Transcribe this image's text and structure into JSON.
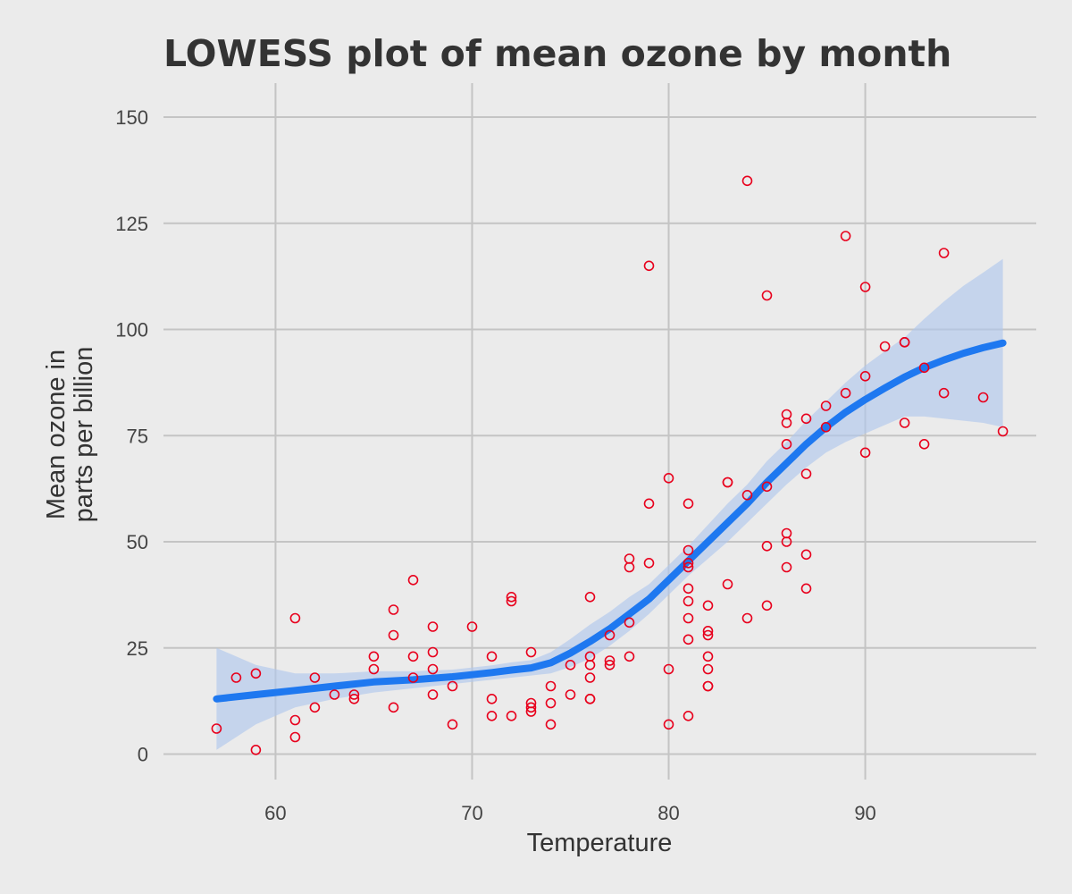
{
  "chart_data": {
    "type": "scatter",
    "title": "LOWESS plot of mean ozone by month",
    "xlabel": "Temperature",
    "ylabel": [
      "Mean ozone in",
      "parts per billion"
    ],
    "xlim": [
      54.3,
      98.7
    ],
    "ylim": [
      -6,
      158
    ],
    "xticks": [
      60,
      70,
      80,
      90
    ],
    "yticks": [
      0,
      25,
      50,
      75,
      100,
      125,
      150
    ],
    "grid": true,
    "colors": {
      "background": "#ebebeb",
      "grid": "#c4c4c4",
      "points": "#e8001c",
      "line": "#1e78f0",
      "band": "#aec6ee",
      "title": "#333333"
    },
    "points": [
      [
        57,
        6
      ],
      [
        58,
        18
      ],
      [
        59,
        19
      ],
      [
        59,
        1
      ],
      [
        61,
        32
      ],
      [
        61,
        8
      ],
      [
        61,
        4
      ],
      [
        62,
        18
      ],
      [
        62,
        11
      ],
      [
        63,
        14
      ],
      [
        64,
        14
      ],
      [
        64,
        13
      ],
      [
        65,
        23
      ],
      [
        65,
        20
      ],
      [
        66,
        34
      ],
      [
        66,
        28
      ],
      [
        66,
        11
      ],
      [
        67,
        41
      ],
      [
        67,
        23
      ],
      [
        67,
        18
      ],
      [
        68,
        30
      ],
      [
        68,
        24
      ],
      [
        68,
        20
      ],
      [
        68,
        14
      ],
      [
        69,
        16
      ],
      [
        69,
        7
      ],
      [
        70,
        30
      ],
      [
        71,
        23
      ],
      [
        71,
        13
      ],
      [
        71,
        9
      ],
      [
        72,
        37
      ],
      [
        72,
        36
      ],
      [
        72,
        9
      ],
      [
        73,
        24
      ],
      [
        73,
        12
      ],
      [
        73,
        11
      ],
      [
        73,
        10
      ],
      [
        74,
        16
      ],
      [
        74,
        12
      ],
      [
        74,
        7
      ],
      [
        75,
        21
      ],
      [
        75,
        14
      ],
      [
        76,
        37
      ],
      [
        76,
        23
      ],
      [
        76,
        21
      ],
      [
        76,
        18
      ],
      [
        76,
        13
      ],
      [
        76,
        13
      ],
      [
        77,
        28
      ],
      [
        77,
        22
      ],
      [
        77,
        21
      ],
      [
        78,
        46
      ],
      [
        78,
        44
      ],
      [
        78,
        31
      ],
      [
        78,
        23
      ],
      [
        79,
        115
      ],
      [
        79,
        59
      ],
      [
        79,
        45
      ],
      [
        80,
        65
      ],
      [
        80,
        20
      ],
      [
        80,
        7
      ],
      [
        81,
        59
      ],
      [
        81,
        48
      ],
      [
        81,
        45
      ],
      [
        81,
        44
      ],
      [
        81,
        39
      ],
      [
        81,
        36
      ],
      [
        81,
        32
      ],
      [
        81,
        27
      ],
      [
        81,
        9
      ],
      [
        82,
        35
      ],
      [
        82,
        29
      ],
      [
        82,
        28
      ],
      [
        82,
        23
      ],
      [
        82,
        20
      ],
      [
        82,
        16
      ],
      [
        82,
        16
      ],
      [
        83,
        64
      ],
      [
        83,
        64
      ],
      [
        83,
        40
      ],
      [
        84,
        135
      ],
      [
        84,
        61
      ],
      [
        84,
        32
      ],
      [
        85,
        108
      ],
      [
        85,
        63
      ],
      [
        85,
        49
      ],
      [
        85,
        35
      ],
      [
        86,
        80
      ],
      [
        86,
        78
      ],
      [
        86,
        73
      ],
      [
        86,
        52
      ],
      [
        86,
        50
      ],
      [
        86,
        44
      ],
      [
        87,
        79
      ],
      [
        87,
        66
      ],
      [
        87,
        47
      ],
      [
        87,
        39
      ],
      [
        88,
        82
      ],
      [
        88,
        77
      ],
      [
        89,
        122
      ],
      [
        89,
        85
      ],
      [
        90,
        110
      ],
      [
        90,
        89
      ],
      [
        90,
        71
      ],
      [
        91,
        96
      ],
      [
        92,
        97
      ],
      [
        92,
        97
      ],
      [
        92,
        78
      ],
      [
        93,
        91
      ],
      [
        93,
        73
      ],
      [
        94,
        118
      ],
      [
        94,
        85
      ],
      [
        96,
        84
      ],
      [
        97,
        76
      ]
    ],
    "lowess": {
      "x": [
        57,
        59,
        61,
        63,
        65,
        67,
        69,
        71,
        72,
        73,
        74,
        75,
        76,
        77,
        78,
        79,
        80,
        81,
        82,
        83,
        84,
        85,
        86,
        87,
        88,
        89,
        90,
        91,
        92,
        93,
        94,
        95,
        96,
        97
      ],
      "y": [
        13,
        14,
        15,
        16,
        17,
        17.5,
        18.2,
        19.2,
        19.8,
        20.3,
        21.5,
        23.8,
        26.5,
        29.5,
        33,
        36.5,
        41,
        45.5,
        50,
        54.5,
        59,
        64,
        68.5,
        73,
        77,
        80.5,
        83.5,
        86.2,
        88.8,
        91,
        92.8,
        94.4,
        95.7,
        96.8
      ],
      "lower": [
        1,
        7,
        11,
        13,
        14.5,
        15.5,
        16.5,
        17.5,
        18,
        18.5,
        19,
        20.5,
        22.5,
        25.5,
        29,
        33,
        37.5,
        42,
        46,
        50,
        54.5,
        59,
        63.5,
        67.5,
        71,
        73.5,
        75.5,
        77.5,
        79.5,
        79.5,
        79,
        78.5,
        78,
        77
      ]
    }
  }
}
